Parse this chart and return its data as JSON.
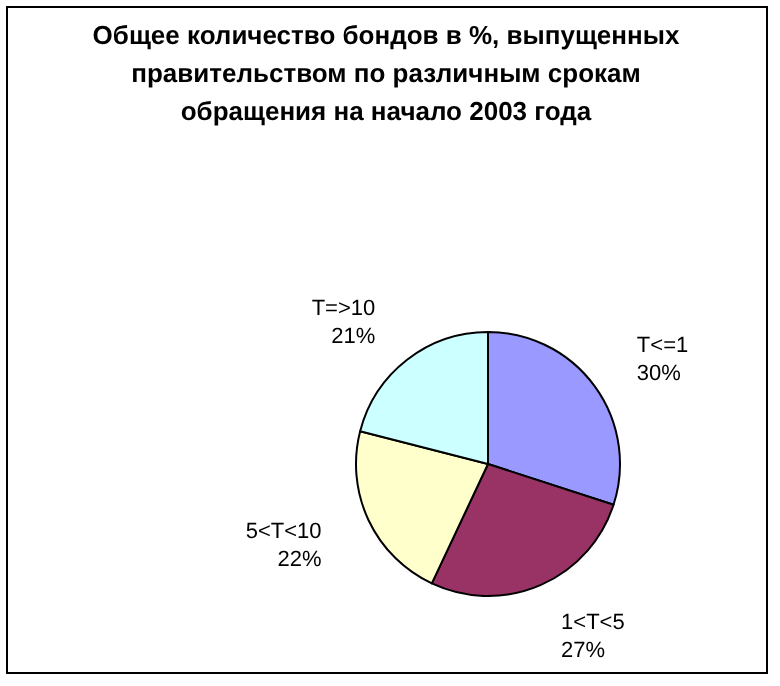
{
  "chart_data": {
    "type": "pie",
    "title": "Общее количество бондов в %, выпущенных\nправительством по различным срокам\nобращения на начало 2003 года",
    "categories": [
      "T<=1",
      "1<T<5",
      "5<T<10",
      "T=>10"
    ],
    "values": [
      30,
      27,
      22,
      21
    ],
    "value_labels": [
      "30%",
      "27%",
      "22%",
      "21%"
    ],
    "colors": [
      "#9999ff",
      "#993366",
      "#ffffcc",
      "#ccffff"
    ]
  }
}
